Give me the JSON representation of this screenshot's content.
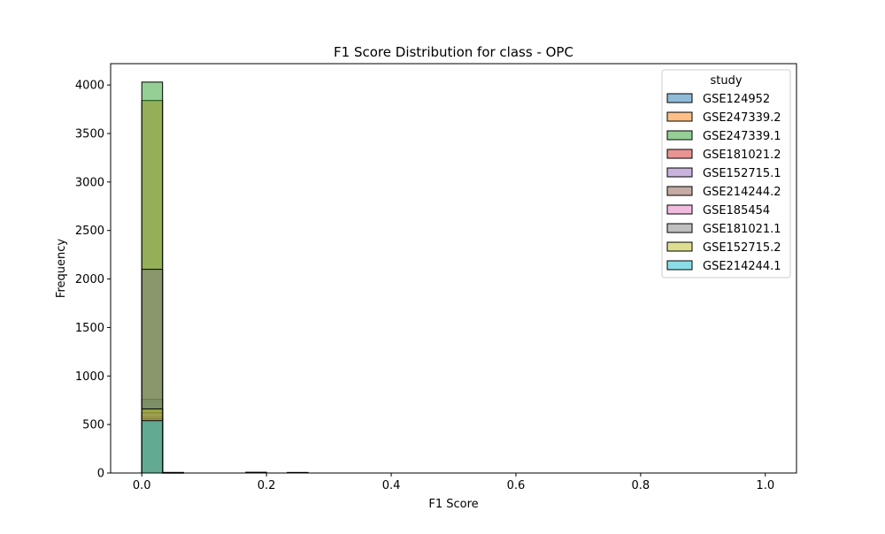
{
  "chart_data": {
    "type": "bar",
    "title": "F1 Score Distribution for class - OPC",
    "xlabel": "F1 Score",
    "ylabel": "Frequency",
    "xlim": [
      -0.05,
      1.05
    ],
    "ylim": [
      0,
      4220
    ],
    "xticks": [
      0.0,
      0.2,
      0.4,
      0.6,
      0.8,
      1.0
    ],
    "xtick_labels": [
      "0.0",
      "0.2",
      "0.4",
      "0.6",
      "0.8",
      "1.0"
    ],
    "yticks": [
      0,
      500,
      1000,
      1500,
      2000,
      2500,
      3000,
      3500,
      4000
    ],
    "ytick_labels": [
      "0",
      "500",
      "1000",
      "1500",
      "2000",
      "2500",
      "3000",
      "3500",
      "4000"
    ],
    "grid": false,
    "legend_title": "study",
    "legend_position": "top-right",
    "bin_width": 0.0333,
    "series": [
      {
        "name": "GSE124952",
        "color": "#1f77b4",
        "bins": [
          {
            "x0": 0.0,
            "count": 760
          },
          {
            "x0": 0.0333,
            "count": 4
          },
          {
            "x0": 0.1667,
            "count": 3
          }
        ]
      },
      {
        "name": "GSE247339.2",
        "color": "#ff7f0e",
        "bins": [
          {
            "x0": 0.0,
            "count": 3840
          },
          {
            "x0": 0.0333,
            "count": 5
          },
          {
            "x0": 0.2333,
            "count": 4
          }
        ]
      },
      {
        "name": "GSE247339.1",
        "color": "#2ca02c",
        "bins": [
          {
            "x0": 0.0,
            "count": 4030
          },
          {
            "x0": 0.0333,
            "count": 6
          },
          {
            "x0": 0.1667,
            "count": 8
          },
          {
            "x0": 0.2333,
            "count": 6
          }
        ]
      },
      {
        "name": "GSE181021.2",
        "color": "#d62728",
        "bins": [
          {
            "x0": 0.0,
            "count": 580
          },
          {
            "x0": 0.0333,
            "count": 3
          }
        ]
      },
      {
        "name": "GSE152715.1",
        "color": "#9467bd",
        "bins": [
          {
            "x0": 0.0,
            "count": 620
          },
          {
            "x0": 0.0333,
            "count": 3
          }
        ]
      },
      {
        "name": "GSE214244.2",
        "color": "#8c564b",
        "bins": [
          {
            "x0": 0.0,
            "count": 520
          },
          {
            "x0": 0.0333,
            "count": 2
          }
        ]
      },
      {
        "name": "GSE185454",
        "color": "#e377c2",
        "bins": [
          {
            "x0": 0.0,
            "count": 560
          },
          {
            "x0": 0.0333,
            "count": 2
          }
        ]
      },
      {
        "name": "GSE181021.1",
        "color": "#7f7f7f",
        "bins": [
          {
            "x0": 0.0,
            "count": 2100
          },
          {
            "x0": 0.0333,
            "count": 4
          }
        ]
      },
      {
        "name": "GSE152715.2",
        "color": "#bcbd22",
        "bins": [
          {
            "x0": 0.0,
            "count": 660
          },
          {
            "x0": 0.0333,
            "count": 3
          }
        ]
      },
      {
        "name": "GSE214244.1",
        "color": "#17becf",
        "bins": [
          {
            "x0": 0.0,
            "count": 540
          },
          {
            "x0": 0.0333,
            "count": 2
          }
        ]
      }
    ]
  }
}
